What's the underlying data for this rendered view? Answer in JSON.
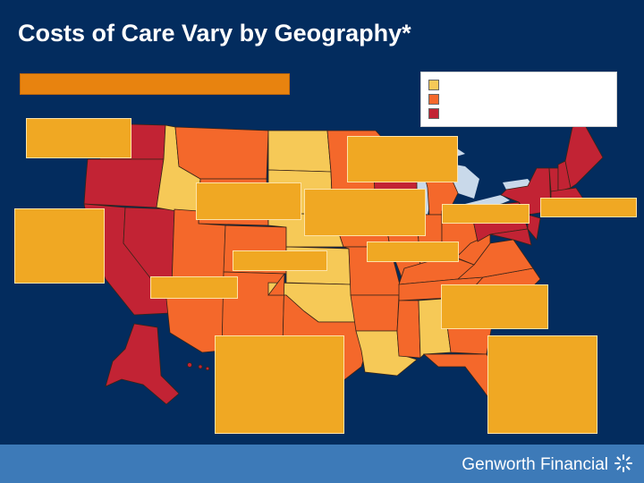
{
  "slide": {
    "title": "Costs of Care Vary by Geography*"
  },
  "legend": {
    "items": [
      {
        "label": "",
        "color": "#f6c957"
      },
      {
        "label": "",
        "color": "#f4682b"
      },
      {
        "label": "",
        "color": "#c22334"
      }
    ]
  },
  "colors": {
    "background": "#032c5e",
    "tier_low": "#f6c957",
    "tier_mid": "#f4682b",
    "tier_high": "#c22334",
    "callout": "#f0a823",
    "banner": "#e8830f",
    "footer": "#3d7ab8",
    "water": "#c9d9ea"
  },
  "footer": {
    "brand": "Genworth Financial",
    "logo_icon": "starburst-icon"
  }
}
